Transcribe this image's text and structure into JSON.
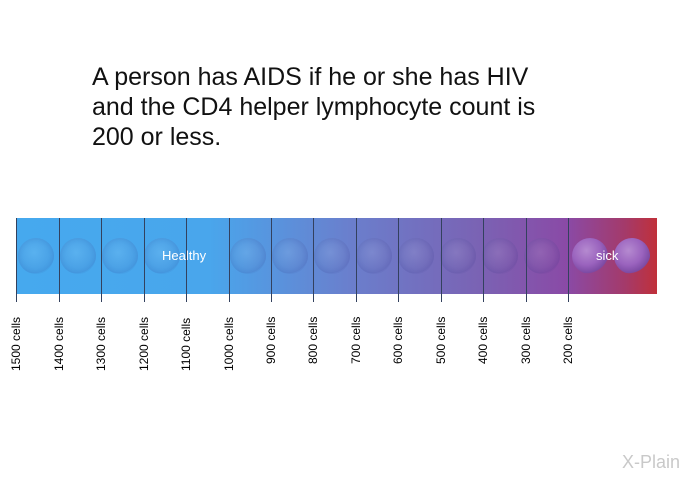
{
  "headline": {
    "line1": "A person has AIDS if he or she has HIV",
    "line2": "and the CD4 helper lymphocyte count is",
    "line3": "200 or less."
  },
  "bar": {
    "healthy_label": "Healthy",
    "sick_label": "sick",
    "colors": {
      "healthy": "#46a9ee",
      "sick": "#c0303a"
    }
  },
  "ticks": [
    "1500 cells",
    "1400 cells",
    "1300 cells",
    "1200 cells",
    "1100 cells",
    "1000 cells",
    "900 cells",
    "800 cells",
    "700 cells",
    "600 cells",
    "500 cells",
    "400 cells",
    "300 cells",
    "200 cells"
  ],
  "watermark": {
    "brand": "X-Plain"
  }
}
